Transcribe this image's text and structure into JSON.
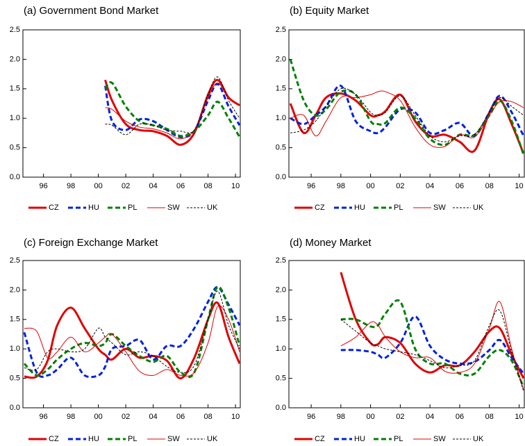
{
  "chart_data": [
    {
      "type": "line",
      "title": "(a) Government Bond Market",
      "legend": "bottom",
      "x": [
        1994.6,
        1995.5,
        1996.3,
        1997,
        1998,
        1999,
        2000,
        2000.5,
        2001,
        2002,
        2003,
        2004,
        2005,
        2006,
        2007,
        2008,
        2008.7,
        2009.5,
        2010.3
      ],
      "xlim": [
        1994.5,
        2010.35
      ],
      "xticks": [
        {
          "value": 1996,
          "label": "96"
        },
        {
          "value": 1998,
          "label": "98"
        },
        {
          "value": 2000,
          "label": "00"
        },
        {
          "value": 2002,
          "label": "02"
        },
        {
          "value": 2004,
          "label": "04"
        },
        {
          "value": 2006,
          "label": "06"
        },
        {
          "value": 2008,
          "label": "08"
        },
        {
          "value": 2010,
          "label": "10"
        }
      ],
      "ylim": [
        0,
        2.5
      ],
      "yticks": [
        {
          "value": 0,
          "label": "0.0"
        },
        0.5,
        {
          "value": 1,
          "label": "1.0"
        },
        1.5,
        {
          "value": 2,
          "label": "2.0"
        },
        2.5
      ],
      "series": [
        {
          "name": "CZ",
          "color": "#e00000",
          "style": "solid",
          "weight": "thick",
          "values": [
            null,
            null,
            null,
            null,
            null,
            null,
            null,
            1.65,
            1.3,
            0.9,
            0.8,
            0.78,
            0.7,
            0.55,
            0.75,
            1.4,
            1.65,
            1.35,
            1.22
          ]
        },
        {
          "name": "HU",
          "color": "#0020e0",
          "style": "dashed",
          "weight": "thick",
          "values": [
            null,
            null,
            null,
            null,
            null,
            null,
            null,
            1.55,
            0.95,
            0.8,
            0.98,
            0.95,
            0.8,
            0.68,
            0.78,
            1.3,
            1.58,
            1.2,
            0.88
          ]
        },
        {
          "name": "PL",
          "color": "#008000",
          "style": "dashed",
          "weight": "thick",
          "values": [
            null,
            null,
            null,
            null,
            null,
            null,
            null,
            1.5,
            1.6,
            1.2,
            0.95,
            0.88,
            0.82,
            0.7,
            0.78,
            1.05,
            1.28,
            1.0,
            0.68
          ]
        },
        {
          "name": "SW",
          "color": "#e00000",
          "style": "solid",
          "weight": "thin",
          "values": [
            null,
            null,
            null,
            null,
            null,
            null,
            null,
            1.18,
            1.15,
            0.95,
            0.85,
            0.82,
            0.75,
            0.65,
            0.8,
            1.35,
            1.6,
            1.35,
            1.22
          ]
        },
        {
          "name": "UK",
          "color": "#000000",
          "style": "dashed",
          "weight": "thin",
          "values": [
            null,
            null,
            null,
            null,
            null,
            null,
            null,
            0.9,
            0.88,
            0.72,
            0.9,
            0.88,
            0.8,
            0.78,
            0.8,
            1.4,
            1.7,
            1.3,
            1.0
          ]
        }
      ]
    },
    {
      "type": "line",
      "title": "(b) Equity Market",
      "legend": "bottom",
      "x": [
        1994.6,
        1995.5,
        1996.3,
        1997,
        1998,
        1999,
        2000,
        2000.5,
        2001,
        2002,
        2003,
        2004,
        2005,
        2006,
        2007,
        2008,
        2008.7,
        2009.5,
        2010.3
      ],
      "xlim": [
        1994.5,
        2010.35
      ],
      "xticks": [
        {
          "value": 1996,
          "label": "96"
        },
        {
          "value": 1998,
          "label": "98"
        },
        {
          "value": 2000,
          "label": "00"
        },
        {
          "value": 2002,
          "label": "02"
        },
        {
          "value": 2004,
          "label": "04"
        },
        {
          "value": 2006,
          "label": "06"
        },
        {
          "value": 2008,
          "label": "08"
        },
        {
          "value": 2010,
          "label": "10"
        }
      ],
      "ylim": [
        0,
        2.5
      ],
      "yticks": [
        {
          "value": 0,
          "label": "0.0"
        },
        0.5,
        {
          "value": 1,
          "label": "1.0"
        },
        1.5,
        {
          "value": 2,
          "label": "2.0"
        },
        2.5
      ],
      "series": [
        {
          "name": "CZ",
          "color": "#e00000",
          "style": "solid",
          "weight": "thick",
          "values": [
            1.25,
            0.75,
            1.05,
            1.35,
            1.42,
            1.3,
            1.05,
            1.05,
            1.12,
            1.4,
            0.95,
            0.7,
            0.72,
            0.6,
            0.45,
            1.1,
            1.32,
            0.9,
            0.4
          ]
        },
        {
          "name": "HU",
          "color": "#0020e0",
          "style": "dashed",
          "weight": "thick",
          "values": [
            1.0,
            0.9,
            1.05,
            1.2,
            1.55,
            0.95,
            0.78,
            0.75,
            0.85,
            1.15,
            1.1,
            0.75,
            0.8,
            0.92,
            0.7,
            1.1,
            1.38,
            1.1,
            0.7
          ]
        },
        {
          "name": "PL",
          "color": "#008000",
          "style": "dashed",
          "weight": "thick",
          "values": [
            2.0,
            1.3,
            1.05,
            1.15,
            1.45,
            1.4,
            0.95,
            0.9,
            0.92,
            1.18,
            1.0,
            0.65,
            0.55,
            0.72,
            0.72,
            1.05,
            1.3,
            0.95,
            0.38
          ]
        },
        {
          "name": "SW",
          "color": "#e00000",
          "style": "solid",
          "weight": "thin",
          "values": [
            1.0,
            1.05,
            0.7,
            0.95,
            1.35,
            1.35,
            1.4,
            1.45,
            1.45,
            1.3,
            0.85,
            0.55,
            0.52,
            0.72,
            0.68,
            1.05,
            1.28,
            1.28,
            1.18
          ]
        },
        {
          "name": "UK",
          "color": "#000000",
          "style": "dashed",
          "weight": "thin",
          "values": [
            0.75,
            0.8,
            0.95,
            1.2,
            1.5,
            1.4,
            1.1,
            1.05,
            1.1,
            1.38,
            1.05,
            0.7,
            0.6,
            0.7,
            0.72,
            1.1,
            1.35,
            1.2,
            1.05
          ]
        }
      ]
    },
    {
      "type": "line",
      "title": "(c) Foreign Exchange Market",
      "legend": "bottom",
      "x": [
        1994.6,
        1995.5,
        1996.3,
        1997,
        1998,
        1999,
        2000,
        2000.5,
        2001,
        2002,
        2003,
        2004,
        2005,
        2006,
        2007,
        2008,
        2008.7,
        2009.5,
        2010.3
      ],
      "xlim": [
        1994.5,
        2010.35
      ],
      "xticks": [
        {
          "value": 1996,
          "label": "96"
        },
        {
          "value": 1998,
          "label": "98"
        },
        {
          "value": 2000,
          "label": "00"
        },
        {
          "value": 2002,
          "label": "02"
        },
        {
          "value": 2004,
          "label": "04"
        },
        {
          "value": 2006,
          "label": "06"
        },
        {
          "value": 2008,
          "label": "08"
        },
        {
          "value": 2010,
          "label": "10"
        }
      ],
      "ylim": [
        0,
        2.5
      ],
      "yticks": [
        {
          "value": 0,
          "label": "0.0"
        },
        0.5,
        {
          "value": 1,
          "label": "1.0"
        },
        1.5,
        {
          "value": 2,
          "label": "2.0"
        },
        2.5
      ],
      "series": [
        {
          "name": "CZ",
          "color": "#e00000",
          "style": "solid",
          "weight": "thick",
          "values": [
            0.53,
            0.53,
            0.8,
            1.4,
            1.7,
            1.35,
            1.0,
            0.9,
            0.82,
            1.0,
            0.85,
            0.88,
            0.8,
            0.5,
            0.85,
            1.5,
            1.78,
            1.2,
            0.75
          ]
        },
        {
          "name": "HU",
          "color": "#0020e0",
          "style": "dashed",
          "weight": "thick",
          "values": [
            1.28,
            0.6,
            0.55,
            0.65,
            0.85,
            0.55,
            0.55,
            0.7,
            1.0,
            1.05,
            1.15,
            0.82,
            1.05,
            1.05,
            1.35,
            1.8,
            2.05,
            1.75,
            1.4
          ]
        },
        {
          "name": "PL",
          "color": "#008000",
          "style": "dashed",
          "weight": "thick",
          "values": [
            0.75,
            0.55,
            0.65,
            0.82,
            1.0,
            1.1,
            1.05,
            1.1,
            1.25,
            1.05,
            0.88,
            0.78,
            0.88,
            0.6,
            0.6,
            1.5,
            2.05,
            1.7,
            1.05
          ]
        },
        {
          "name": "SW",
          "color": "#e00000",
          "style": "solid",
          "weight": "thin",
          "values": [
            1.35,
            1.3,
            0.85,
            0.95,
            1.2,
            0.95,
            1.1,
            1.2,
            1.25,
            0.95,
            0.62,
            0.55,
            0.65,
            0.55,
            0.6,
            1.1,
            1.72,
            1.5,
            0.95
          ]
        },
        {
          "name": "UK",
          "color": "#000000",
          "style": "dashed",
          "weight": "thin",
          "values": [
            0.68,
            0.65,
            0.95,
            1.0,
            0.95,
            1.0,
            1.35,
            1.2,
            1.1,
            0.9,
            0.95,
            0.88,
            0.7,
            0.6,
            0.72,
            1.5,
            1.98,
            1.4,
            1.0
          ]
        }
      ]
    },
    {
      "type": "line",
      "title": "(d) Money Market",
      "legend": "bottom",
      "x": [
        1994.6,
        1995.5,
        1996.3,
        1997,
        1998,
        1999,
        2000,
        2000.5,
        2001,
        2002,
        2003,
        2004,
        2005,
        2006,
        2007,
        2008,
        2008.7,
        2009.5,
        2010.3
      ],
      "xlim": [
        1994.5,
        2010.35
      ],
      "xticks": [
        {
          "value": 1996,
          "label": "96"
        },
        {
          "value": 1998,
          "label": "98"
        },
        {
          "value": 2000,
          "label": "00"
        },
        {
          "value": 2002,
          "label": "02"
        },
        {
          "value": 2004,
          "label": "04"
        },
        {
          "value": 2006,
          "label": "06"
        },
        {
          "value": 2008,
          "label": "08"
        },
        {
          "value": 2010,
          "label": "10"
        }
      ],
      "ylim": [
        0,
        2.5
      ],
      "yticks": [
        {
          "value": 0,
          "label": "0.0"
        },
        0.5,
        {
          "value": 1,
          "label": "1.0"
        },
        1.5,
        {
          "value": 2,
          "label": "2.0"
        },
        2.5
      ],
      "series": [
        {
          "name": "CZ",
          "color": "#e00000",
          "style": "solid",
          "weight": "thick",
          "values": [
            null,
            null,
            null,
            null,
            2.3,
            1.5,
            1.1,
            1.08,
            1.2,
            1.1,
            0.75,
            0.6,
            0.72,
            0.72,
            0.95,
            1.3,
            1.35,
            0.9,
            0.5
          ]
        },
        {
          "name": "HU",
          "color": "#0020e0",
          "style": "dashed",
          "weight": "thick",
          "values": [
            null,
            null,
            null,
            null,
            0.98,
            0.98,
            0.95,
            0.9,
            0.85,
            1.1,
            1.55,
            1.05,
            0.82,
            0.75,
            0.78,
            0.98,
            1.15,
            0.85,
            0.58
          ]
        },
        {
          "name": "PL",
          "color": "#008000",
          "style": "dashed",
          "weight": "thick",
          "values": [
            null,
            null,
            null,
            null,
            1.5,
            1.5,
            1.38,
            1.4,
            1.6,
            1.8,
            1.0,
            0.75,
            0.75,
            0.58,
            0.58,
            0.88,
            0.98,
            0.8,
            0.35
          ]
        },
        {
          "name": "SW",
          "color": "#e00000",
          "style": "solid",
          "weight": "thin",
          "values": [
            null,
            null,
            null,
            null,
            1.05,
            1.2,
            1.45,
            1.4,
            1.2,
            0.95,
            0.85,
            0.85,
            0.62,
            0.6,
            0.75,
            1.35,
            1.8,
            1.0,
            0.3
          ]
        },
        {
          "name": "UK",
          "color": "#000000",
          "style": "dashed",
          "weight": "thin",
          "values": [
            null,
            null,
            null,
            null,
            1.5,
            1.3,
            1.1,
            1.05,
            1.0,
            0.95,
            0.9,
            0.8,
            0.68,
            0.72,
            0.8,
            1.4,
            1.65,
            0.95,
            0.28
          ]
        }
      ]
    }
  ]
}
